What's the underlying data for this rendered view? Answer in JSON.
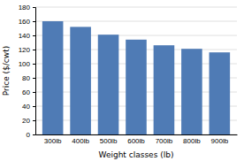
{
  "chart_data": {
    "type": "bar",
    "categories": [
      "300lb",
      "400lb",
      "500lb",
      "600lb",
      "700lb",
      "800lb",
      "900lb"
    ],
    "values": [
      160,
      152,
      141,
      134,
      126,
      121,
      116
    ],
    "color": "#4f7bb5",
    "xlabel": "Weight classes (lb)",
    "ylabel": "Price ($/cwt)",
    "ylim": [
      0,
      180
    ],
    "yticks": [
      0,
      20,
      40,
      60,
      80,
      100,
      120,
      140,
      160,
      180
    ],
    "grid": true
  }
}
